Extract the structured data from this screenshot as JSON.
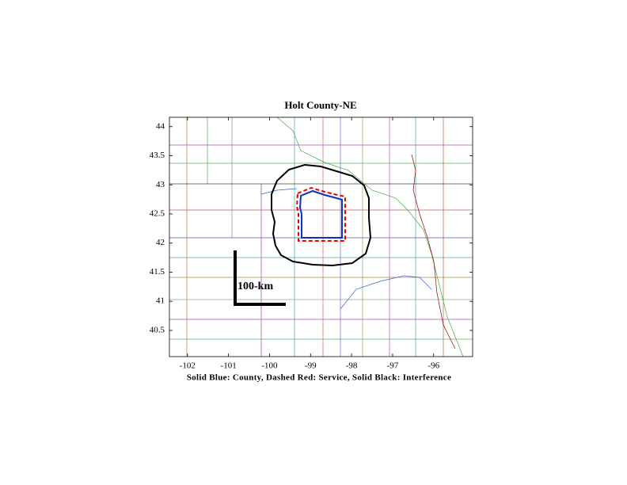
{
  "chart_data": {
    "type": "map",
    "title": "Holt County-NE",
    "xlabel": "Solid Blue: County, Dashed Red: Service, Solid Black: Interference",
    "scale_label": "100-km",
    "xlim": [
      -102.44,
      -95.05
    ],
    "ylim": [
      40.05,
      44.16
    ],
    "xticks": [
      -102,
      -101,
      -100,
      -99,
      -98,
      -97,
      -96
    ],
    "yticks": [
      40.5,
      41,
      41.5,
      42,
      42.5,
      43,
      43.5,
      44
    ]
  }
}
